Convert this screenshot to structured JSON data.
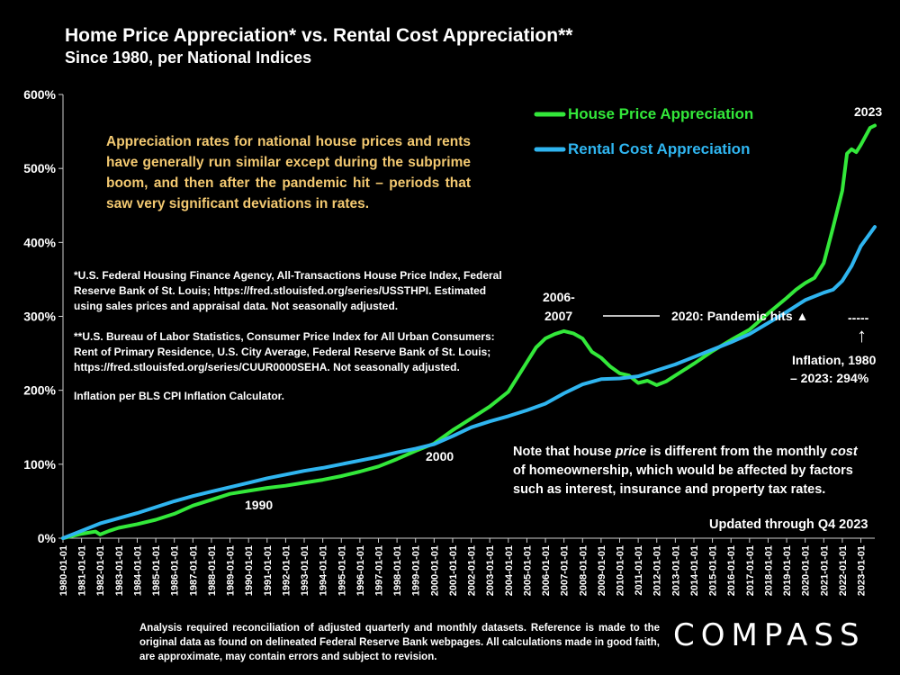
{
  "header": {
    "title": "Home Price Appreciation* vs. Rental Cost Appreciation**",
    "subtitle": "Since 1980, per National Indices"
  },
  "callout": "Appreciation rates for national house prices and rents have generally run similar except during the subprime boom, and then after the pandemic hit – periods that saw very significant deviations in rates.",
  "notes": {
    "house_source": "*U.S. Federal Housing Finance Agency, All-Transactions House Price Index, Federal Reserve Bank of St. Louis; https://fred.stlouisfed.org/series/USSTHPI. Estimated using sales prices and appraisal data. Not seasonally adjusted.",
    "rent_source": "**U.S. Bureau of Labor Statistics, Consumer Price Index for All Urban Consumers: Rent of Primary Residence, U.S. City Average, Federal Reserve Bank of St. Louis; https://fred.stlouisfed.org/series/CUUR0000SEHA. Not seasonally adjusted.",
    "inflation_source": "Inflation per BLS CPI Inflation Calculator."
  },
  "annotations": {
    "year_2006_line1": "2006-",
    "year_2006_line2": "2007",
    "year_2000": "2000",
    "year_1990": "1990",
    "year_2023": "2023",
    "pandemic": "2020:  Pandemic hits ▲",
    "inflation_line1": "Inflation, 1980",
    "inflation_line2": "– 2023: 294%",
    "inflation_dash": "-----",
    "inflation_arrow": "↑",
    "price_note_parts": [
      "Note that house ",
      "price",
      " is different from the monthly ",
      "cost",
      " of homeownership, which would be affected by factors such as interest, insurance and property tax rates."
    ],
    "updated": "Updated through Q4 2023"
  },
  "footer": "Analysis required reconciliation of adjusted quarterly and monthly datasets. Reference is made to the original data as found on delineated Federal Reserve Bank webpages. All calculations made in good faith, are approximate, may contain errors and subject to revision.",
  "logo": "COMPASS",
  "colors": {
    "house": "#33e83a",
    "rent": "#2fb5f0",
    "callout": "#f3c971"
  },
  "chart_data": {
    "type": "line",
    "title": "Home Price Appreciation* vs. Rental Cost Appreciation**",
    "xlabel": "",
    "ylabel": "",
    "ylim": [
      0,
      600
    ],
    "yticks": [
      0,
      100,
      200,
      300,
      400,
      500,
      600
    ],
    "ytick_labels": [
      "0%",
      "100%",
      "200%",
      "300%",
      "400%",
      "500%",
      "600%"
    ],
    "x_range": [
      1980,
      2023.75
    ],
    "xtick_labels": [
      "1980-01-01",
      "1981-01-01",
      "1982-01-01",
      "1983-01-01",
      "1984-01-01",
      "1985-01-01",
      "1986-01-01",
      "1987-01-01",
      "1988-01-01",
      "1989-01-01",
      "1990-01-01",
      "1991-01-01",
      "1992-01-01",
      "1993-01-01",
      "1994-01-01",
      "1995-01-01",
      "1996-01-01",
      "1997-01-01",
      "1998-01-01",
      "1999-01-01",
      "2000-01-01",
      "2001-01-01",
      "2002-01-01",
      "2003-01-01",
      "2004-01-01",
      "2005-01-01",
      "2006-01-01",
      "2007-01-01",
      "2008-01-01",
      "2009-01-01",
      "2010-01-01",
      "2011-01-01",
      "2012-01-01",
      "2013-01-01",
      "2014-01-01",
      "2015-01-01",
      "2016-01-01",
      "2017-01-01",
      "2018-01-01",
      "2019-01-01",
      "2020-01-01",
      "2021-01-01",
      "2022-01-01",
      "2023-01-01"
    ],
    "legend_position": "top-right",
    "series": [
      {
        "name": "House Price Appreciation",
        "x": [
          1980,
          1981,
          1981.75,
          1982,
          1982.5,
          1983,
          1984,
          1985,
          1986,
          1987,
          1988,
          1989,
          1990,
          1991,
          1992,
          1993,
          1994,
          1995,
          1996,
          1997,
          1998,
          1999,
          2000,
          2001,
          2002,
          2003,
          2004,
          2004.5,
          2005,
          2005.5,
          2006,
          2006.5,
          2007,
          2007.5,
          2008,
          2008.5,
          2009,
          2009.5,
          2010,
          2010.5,
          2011,
          2011.5,
          2012,
          2012.5,
          2013,
          2014,
          2015,
          2016,
          2017,
          2018,
          2019,
          2019.5,
          2020,
          2020.5,
          2021,
          2021.5,
          2022,
          2022.25,
          2022.5,
          2022.75,
          2023,
          2023.5,
          2023.75
        ],
        "values": [
          0,
          6,
          9,
          5,
          10,
          14,
          19,
          25,
          33,
          44,
          52,
          60,
          64,
          68,
          71,
          75,
          79,
          84,
          90,
          97,
          107,
          118,
          128,
          146,
          162,
          178,
          198,
          218,
          238,
          258,
          270,
          276,
          280,
          277,
          270,
          252,
          244,
          232,
          223,
          220,
          210,
          213,
          207,
          212,
          220,
          236,
          253,
          268,
          282,
          304,
          325,
          336,
          345,
          352,
          372,
          420,
          470,
          520,
          526,
          522,
          532,
          555,
          558
        ]
      },
      {
        "name": "Rental Cost Appreciation",
        "x": [
          1980,
          1981,
          1982,
          1983,
          1984,
          1985,
          1986,
          1987,
          1988,
          1989,
          1990,
          1991,
          1992,
          1993,
          1994,
          1995,
          1996,
          1997,
          1998,
          1999,
          2000,
          2001,
          2002,
          2003,
          2004,
          2005,
          2006,
          2007,
          2008,
          2009,
          2010,
          2011,
          2012,
          2013,
          2014,
          2015,
          2016,
          2017,
          2018,
          2019,
          2020,
          2021,
          2021.5,
          2022,
          2022.5,
          2023,
          2023.75
        ],
        "values": [
          0,
          10,
          20,
          27,
          34,
          42,
          50,
          57,
          63,
          69,
          75,
          81,
          86,
          91,
          95,
          100,
          105,
          110,
          116,
          121,
          127,
          138,
          150,
          158,
          165,
          173,
          182,
          196,
          208,
          215,
          216,
          219,
          227,
          235,
          245,
          255,
          265,
          276,
          291,
          306,
          322,
          332,
          336,
          348,
          368,
          395,
          421
        ]
      }
    ]
  }
}
